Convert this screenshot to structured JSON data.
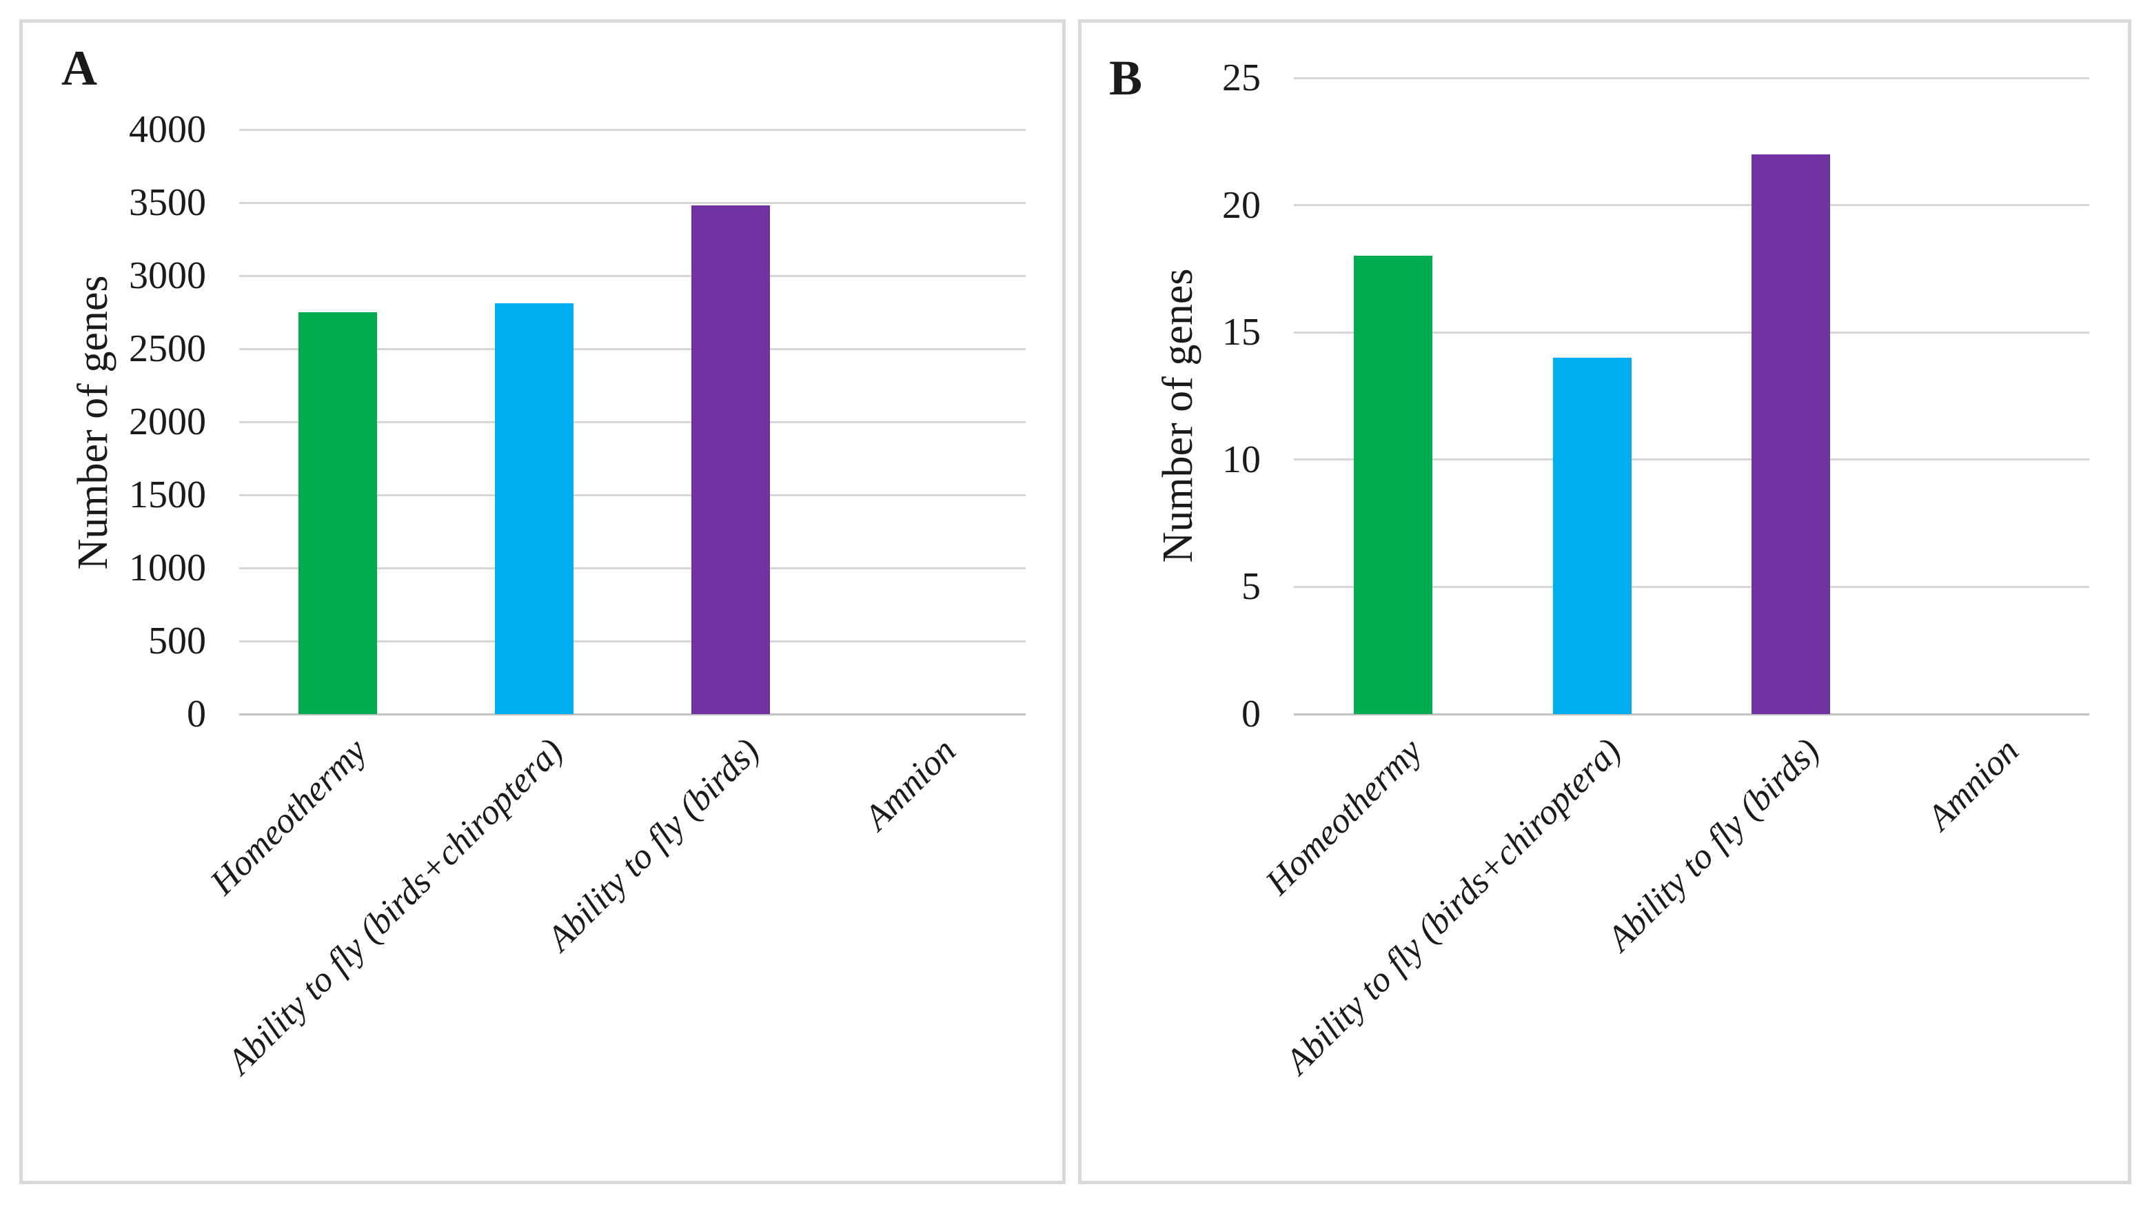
{
  "figure": {
    "background": "#FFFFFF",
    "panel_border_color": "#D9D9D9",
    "gridline_color": "#D6D6D6",
    "axis_line_color": "#C3C3C3",
    "text_color": "#1A1A1A"
  },
  "chart_data": [
    {
      "panel_label": "A",
      "type": "bar",
      "title": "",
      "categories": [
        "Homeothermy",
        "Ability to fly (birds+chiroptera)",
        "Ability to fly (birds)",
        "Amnion"
      ],
      "values": [
        2750,
        2810,
        3480,
        0
      ],
      "bar_colors": [
        "#00AC50",
        "#00AEEF",
        "#6F32A0",
        "#C0C0C0"
      ],
      "xlabel": "",
      "ylabel": "Number of genes",
      "ylim": [
        0,
        4000
      ],
      "ytick_step": 500,
      "yticks": [
        0,
        500,
        1000,
        1500,
        2000,
        2500,
        3000,
        3500,
        4000
      ],
      "grid": true,
      "legend_position": "none"
    },
    {
      "panel_label": "B",
      "type": "bar",
      "title": "",
      "categories": [
        "Homeothermy",
        "Ability to fly (birds+chiroptera)",
        "Ability to fly (birds)",
        "Amnion"
      ],
      "values": [
        18,
        14,
        22,
        0
      ],
      "bar_colors": [
        "#00AC50",
        "#00AEEF",
        "#6F32A0",
        "#C0C0C0"
      ],
      "xlabel": "",
      "ylabel": "Number of genes",
      "ylim": [
        0,
        25
      ],
      "ytick_step": 5,
      "yticks": [
        0,
        5,
        10,
        15,
        20,
        25
      ],
      "grid": true,
      "legend_position": "none"
    }
  ]
}
